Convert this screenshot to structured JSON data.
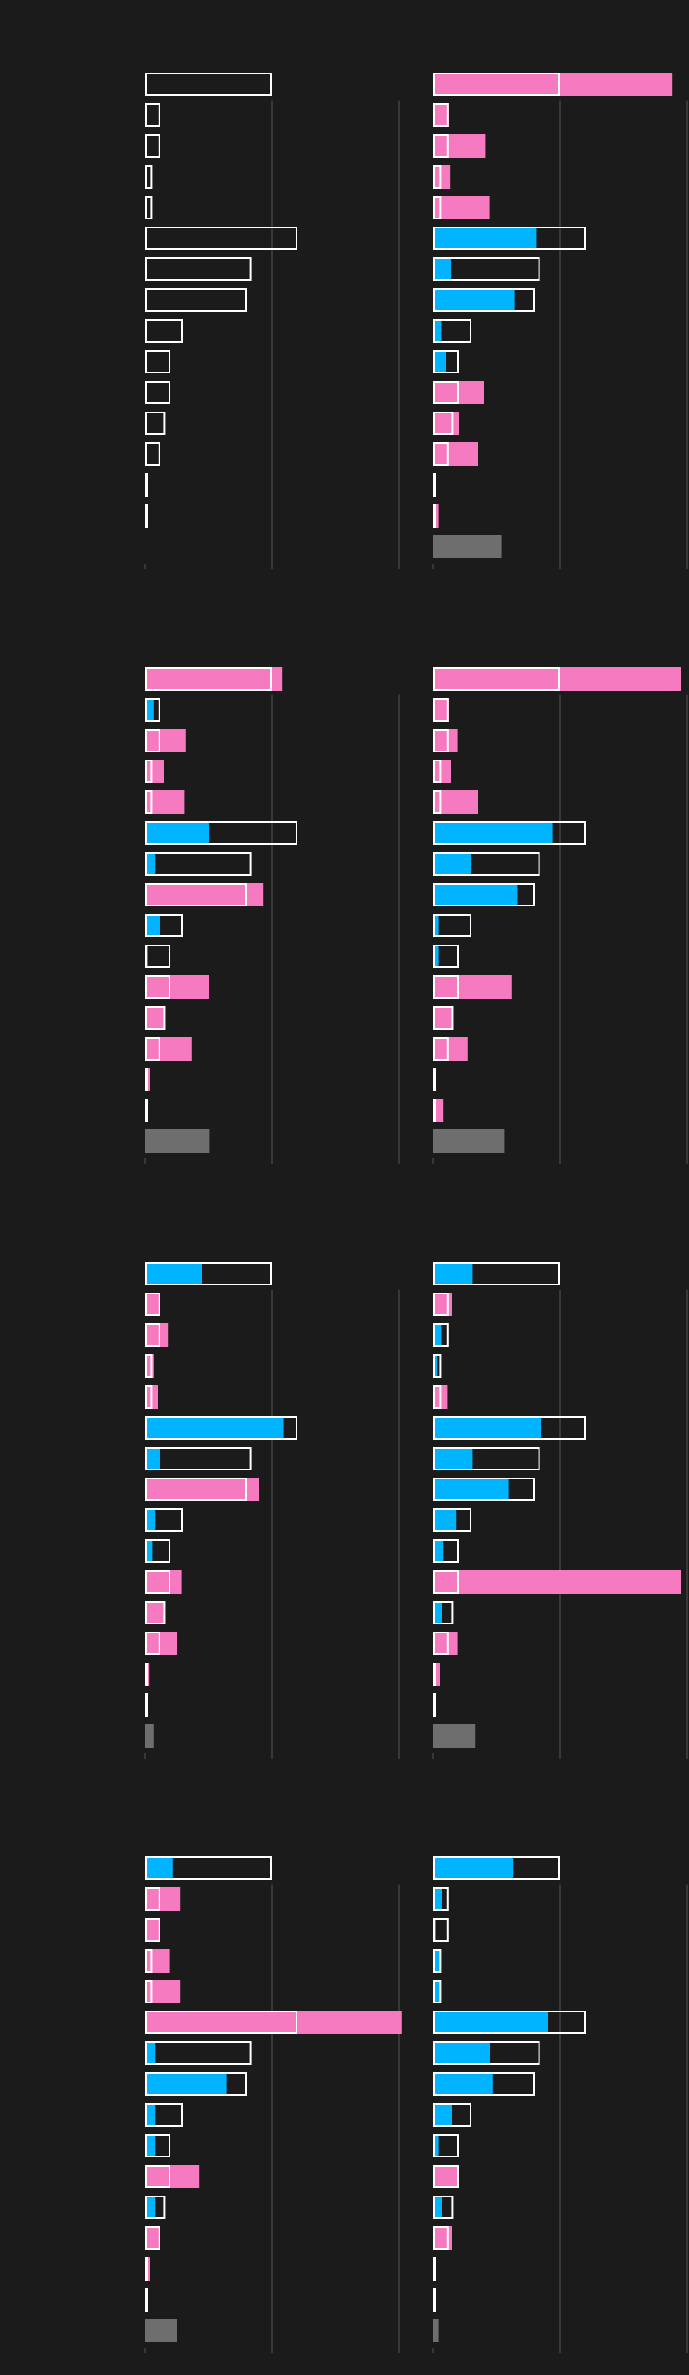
{
  "colors": {
    "background": "#1b1b1b",
    "outline": "#ffffff",
    "above": "#f57ac0",
    "below": "#00b4ff",
    "total": "#6e6e6e",
    "grid": "#555555"
  },
  "chart_data": [
    {
      "type": "bar",
      "panel": "row1-left",
      "xlim": [
        0,
        2
      ],
      "baseline": [
        1.0,
        0.12,
        0.12,
        0.06,
        0.06,
        1.2,
        0.84,
        0.8,
        0.3,
        0.2,
        0.2,
        0.16,
        0.12,
        0.02,
        0.02,
        0.0
      ],
      "values": [
        0.0,
        0.0,
        0.0,
        0.0,
        0.0,
        0.0,
        0.0,
        0.0,
        0.0,
        0.0,
        0.0,
        0.0,
        0.0,
        0.0,
        0.0,
        0.0
      ],
      "total_index": 15
    },
    {
      "type": "bar",
      "panel": "row1-right",
      "xlim": [
        0,
        2
      ],
      "baseline": [
        1.0,
        0.12,
        0.12,
        0.06,
        0.06,
        1.2,
        0.84,
        0.8,
        0.3,
        0.2,
        0.2,
        0.16,
        0.12,
        0.02,
        0.02,
        0.0
      ],
      "values": [
        1.88,
        0.12,
        0.41,
        0.13,
        0.44,
        0.81,
        0.14,
        0.64,
        0.06,
        0.1,
        0.4,
        0.2,
        0.35,
        0.02,
        0.04,
        0.54
      ],
      "total_index": 15
    },
    {
      "type": "bar",
      "panel": "row2-left",
      "xlim": [
        0,
        2
      ],
      "baseline": [
        1.0,
        0.12,
        0.12,
        0.06,
        0.06,
        1.2,
        0.84,
        0.8,
        0.3,
        0.2,
        0.2,
        0.16,
        0.12,
        0.02,
        0.02,
        0.0
      ],
      "values": [
        1.08,
        0.07,
        0.32,
        0.15,
        0.31,
        0.5,
        0.08,
        0.93,
        0.12,
        0.02,
        0.5,
        0.16,
        0.37,
        0.04,
        0.02,
        0.51
      ],
      "total_index": 15
    },
    {
      "type": "bar",
      "panel": "row2-right",
      "xlim": [
        0,
        2
      ],
      "baseline": [
        1.0,
        0.12,
        0.12,
        0.06,
        0.06,
        1.2,
        0.84,
        0.8,
        0.3,
        0.2,
        0.2,
        0.16,
        0.12,
        0.02,
        0.02,
        0.0
      ],
      "values": [
        1.95,
        0.12,
        0.19,
        0.14,
        0.35,
        0.94,
        0.3,
        0.66,
        0.04,
        0.04,
        0.62,
        0.16,
        0.27,
        0.01,
        0.08,
        0.56
      ],
      "total_index": 15
    },
    {
      "type": "bar",
      "panel": "row3-left",
      "xlim": [
        0,
        2
      ],
      "baseline": [
        1.0,
        0.12,
        0.12,
        0.06,
        0.06,
        1.2,
        0.84,
        0.8,
        0.3,
        0.2,
        0.2,
        0.16,
        0.12,
        0.02,
        0.02,
        0.0
      ],
      "values": [
        0.45,
        0.12,
        0.18,
        0.07,
        0.1,
        1.09,
        0.12,
        0.9,
        0.08,
        0.06,
        0.29,
        0.16,
        0.25,
        0.03,
        0.02,
        0.07
      ],
      "total_index": 15
    },
    {
      "type": "bar",
      "panel": "row3-right",
      "xlim": [
        0,
        2
      ],
      "baseline": [
        1.0,
        0.12,
        0.12,
        0.06,
        0.06,
        1.2,
        0.84,
        0.8,
        0.3,
        0.2,
        0.2,
        0.16,
        0.12,
        0.02,
        0.02,
        0.0
      ],
      "values": [
        0.31,
        0.15,
        0.06,
        0.03,
        0.11,
        0.85,
        0.31,
        0.59,
        0.18,
        0.08,
        1.95,
        0.07,
        0.19,
        0.05,
        0.01,
        0.33
      ],
      "total_index": 15
    },
    {
      "type": "bar",
      "panel": "row4-left",
      "xlim": [
        0,
        2
      ],
      "baseline": [
        1.0,
        0.12,
        0.12,
        0.06,
        0.06,
        1.2,
        0.84,
        0.8,
        0.3,
        0.2,
        0.2,
        0.16,
        0.12,
        0.02,
        0.02,
        0.0
      ],
      "values": [
        0.22,
        0.28,
        0.12,
        0.19,
        0.28,
        2.02,
        0.08,
        0.64,
        0.08,
        0.08,
        0.43,
        0.08,
        0.12,
        0.04,
        0.02,
        0.25
      ],
      "total_index": 15
    },
    {
      "type": "bar",
      "panel": "row4-right",
      "xlim": [
        0,
        2
      ],
      "baseline": [
        1.0,
        0.12,
        0.12,
        0.06,
        0.06,
        1.2,
        0.84,
        0.8,
        0.3,
        0.2,
        0.2,
        0.16,
        0.12,
        0.02,
        0.02,
        0.0
      ],
      "values": [
        0.63,
        0.07,
        0.02,
        0.05,
        0.05,
        0.9,
        0.45,
        0.47,
        0.15,
        0.04,
        0.2,
        0.07,
        0.15,
        0.02,
        0.02,
        0.04
      ],
      "total_index": 15
    }
  ]
}
